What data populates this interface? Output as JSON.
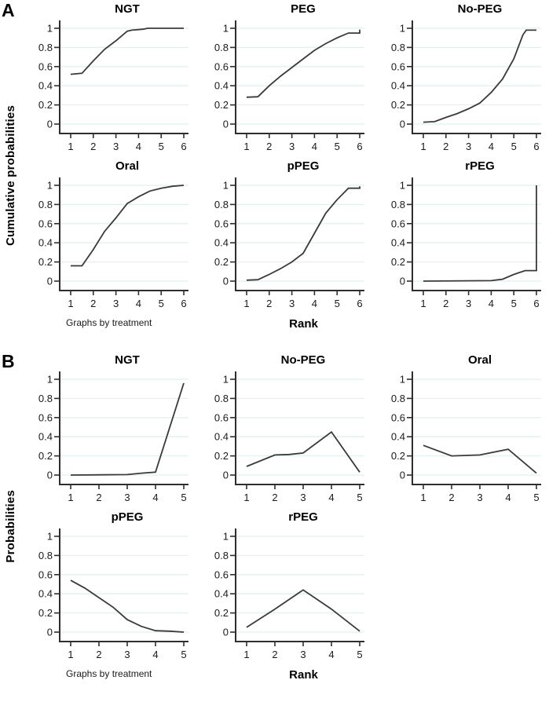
{
  "colors": {
    "line": "#3a3a3a",
    "axis": "#2e2e2e",
    "grid": "#e2f1f0",
    "tick_label": "#1a1a1a",
    "title": "#000000"
  },
  "chart_data": [
    {
      "panel": "A",
      "type": "line",
      "ylabel": "Cumulative probabilities",
      "xlabel": "Rank",
      "note": "Graphs by treatment",
      "xlim": [
        1,
        6
      ],
      "ylim": [
        0,
        1
      ],
      "x_ticks": [
        1,
        2,
        3,
        4,
        5,
        6
      ],
      "y_ticks": [
        0,
        0.2,
        0.4,
        0.6,
        0.8,
        1
      ],
      "y_tick_labels": [
        "0",
        "0.2",
        "0.4",
        "0.6",
        "0.8",
        "1"
      ],
      "grid": true,
      "legend": "none",
      "subplots": [
        {
          "title": "NGT",
          "points": [
            [
              1,
              0.52
            ],
            [
              1.5,
              0.53
            ],
            [
              2,
              0.66
            ],
            [
              2.5,
              0.78
            ],
            [
              3,
              0.87
            ],
            [
              3.5,
              0.97
            ],
            [
              3.7,
              0.98
            ],
            [
              4.2,
              0.99
            ],
            [
              4.4,
              1.0
            ],
            [
              6,
              1.0
            ]
          ]
        },
        {
          "title": "PEG",
          "points": [
            [
              1,
              0.28
            ],
            [
              1.5,
              0.285
            ],
            [
              2,
              0.4
            ],
            [
              2.5,
              0.5
            ],
            [
              3,
              0.59
            ],
            [
              3.5,
              0.68
            ],
            [
              4,
              0.77
            ],
            [
              4.5,
              0.84
            ],
            [
              5,
              0.9
            ],
            [
              5.5,
              0.95
            ],
            [
              6,
              0.95
            ],
            [
              6,
              0.985
            ]
          ]
        },
        {
          "title": "No-PEG",
          "points": [
            [
              1,
              0.02
            ],
            [
              1.5,
              0.025
            ],
            [
              2,
              0.07
            ],
            [
              2.5,
              0.11
            ],
            [
              3,
              0.16
            ],
            [
              3.5,
              0.22
            ],
            [
              4,
              0.33
            ],
            [
              4.5,
              0.47
            ],
            [
              5,
              0.68
            ],
            [
              5.4,
              0.93
            ],
            [
              5.55,
              0.98
            ],
            [
              6,
              0.98
            ]
          ]
        },
        {
          "title": "Oral",
          "points": [
            [
              1,
              0.16
            ],
            [
              1.5,
              0.16
            ],
            [
              2,
              0.33
            ],
            [
              2.5,
              0.52
            ],
            [
              3,
              0.66
            ],
            [
              3.5,
              0.81
            ],
            [
              4,
              0.88
            ],
            [
              4.5,
              0.94
            ],
            [
              5,
              0.97
            ],
            [
              5.5,
              0.99
            ],
            [
              6,
              1.0
            ]
          ]
        },
        {
          "title": "pPEG",
          "points": [
            [
              1,
              0.01
            ],
            [
              1.5,
              0.015
            ],
            [
              2,
              0.07
            ],
            [
              2.5,
              0.13
            ],
            [
              3,
              0.2
            ],
            [
              3.5,
              0.29
            ],
            [
              4,
              0.5
            ],
            [
              4.5,
              0.71
            ],
            [
              5,
              0.85
            ],
            [
              5.5,
              0.97
            ],
            [
              6,
              0.97
            ],
            [
              6,
              0.99
            ]
          ]
        },
        {
          "title": "rPEG",
          "points": [
            [
              1,
              0.0
            ],
            [
              4,
              0.005
            ],
            [
              4.5,
              0.02
            ],
            [
              5,
              0.07
            ],
            [
              5.5,
              0.11
            ],
            [
              6,
              0.11
            ],
            [
              6,
              1.0
            ]
          ]
        }
      ]
    },
    {
      "panel": "B",
      "type": "line",
      "ylabel": "Probabilities",
      "xlabel": "Rank",
      "note": "Graphs by treatment",
      "xlim": [
        1,
        5
      ],
      "ylim": [
        0,
        1
      ],
      "x_ticks": [
        1,
        2,
        3,
        4,
        5
      ],
      "y_ticks": [
        0,
        0.2,
        0.4,
        0.6,
        0.8,
        1
      ],
      "y_tick_labels": [
        "0",
        "0.2",
        "0.4",
        "0.6",
        "0.8",
        "1"
      ],
      "grid": true,
      "legend": "none",
      "subplots": [
        {
          "title": "NGT",
          "points": [
            [
              1,
              0.0
            ],
            [
              3,
              0.005
            ],
            [
              3.5,
              0.02
            ],
            [
              4,
              0.03
            ],
            [
              5,
              0.96
            ]
          ]
        },
        {
          "title": "No-PEG",
          "points": [
            [
              1,
              0.09
            ],
            [
              2,
              0.21
            ],
            [
              2.5,
              0.215
            ],
            [
              3,
              0.23
            ],
            [
              4,
              0.45
            ],
            [
              5,
              0.03
            ]
          ]
        },
        {
          "title": "Oral",
          "points": [
            [
              1,
              0.31
            ],
            [
              2,
              0.2
            ],
            [
              2.5,
              0.205
            ],
            [
              3,
              0.21
            ],
            [
              4,
              0.27
            ],
            [
              5,
              0.02
            ]
          ]
        },
        {
          "title": "pPEG",
          "points": [
            [
              1,
              0.54
            ],
            [
              1.5,
              0.46
            ],
            [
              2,
              0.36
            ],
            [
              2.5,
              0.26
            ],
            [
              3,
              0.13
            ],
            [
              3.5,
              0.06
            ],
            [
              4,
              0.015
            ],
            [
              4.5,
              0.01
            ],
            [
              5,
              0.0
            ]
          ]
        },
        {
          "title": "rPEG",
          "points": [
            [
              1,
              0.05
            ],
            [
              2,
              0.24
            ],
            [
              3,
              0.44
            ],
            [
              4,
              0.24
            ],
            [
              5,
              0.01
            ]
          ]
        }
      ]
    }
  ]
}
